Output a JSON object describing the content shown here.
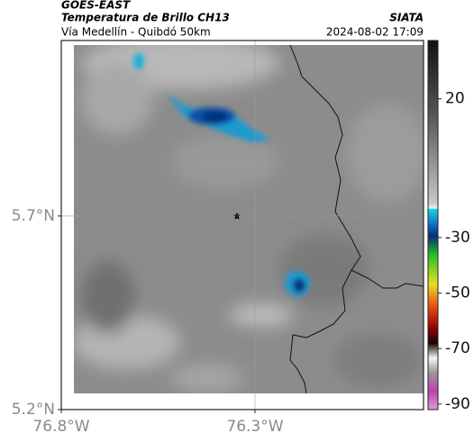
{
  "map": {
    "title": "GOES-EAST",
    "subtitle": "Temperatura de Brillo CH13",
    "region": "Vía Medellín - Quibdó 50km",
    "source": "SIATA",
    "datetime": "2024-08-02 17:09",
    "xlim": [
      -76.8,
      -75.865
    ],
    "ylim": [
      5.2,
      6.153
    ],
    "xticks": [
      {
        "value": -76.8,
        "label": "76.8°W"
      },
      {
        "value": -76.3,
        "label": "76.3°W"
      }
    ],
    "yticks": [
      {
        "value": 5.2,
        "label": "5.2°N"
      },
      {
        "value": 5.7,
        "label": "5.7°N"
      }
    ],
    "colorbar": {
      "lim": [
        -92,
        41
      ],
      "ticks": [
        20,
        -30,
        -50,
        -70,
        -90
      ]
    }
  }
}
